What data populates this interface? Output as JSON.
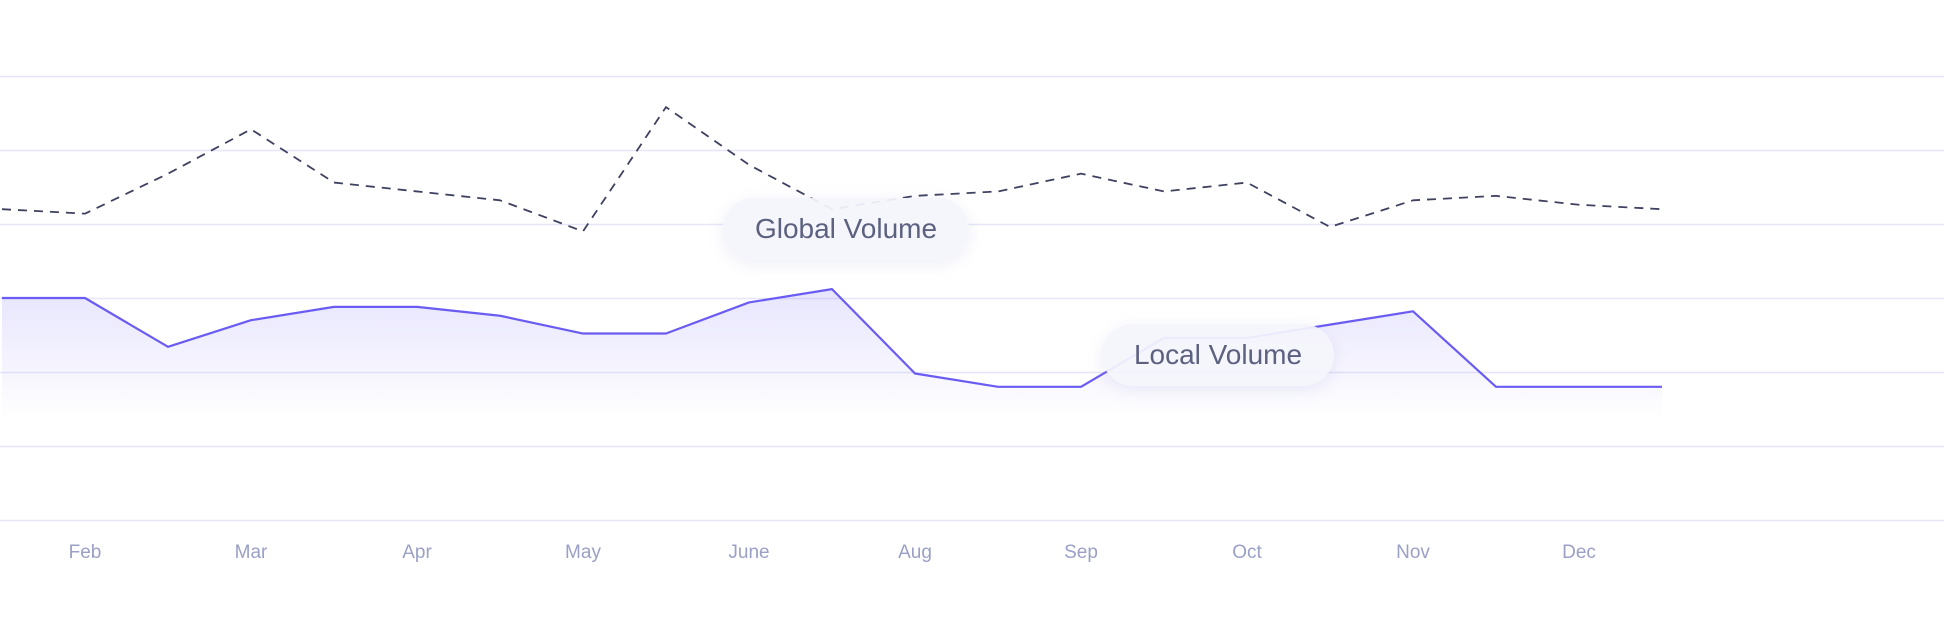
{
  "chart_data": {
    "type": "line",
    "x": [
      "",
      "Feb",
      "",
      "Mar",
      "",
      "Apr",
      "",
      "May",
      "",
      "June",
      "",
      "Aug",
      "",
      "Sep",
      "",
      "Oct",
      "",
      "Nov",
      "",
      "Dec",
      ""
    ],
    "x_tick_labels": [
      "Feb",
      "Mar",
      "Apr",
      "May",
      "June",
      "Aug",
      "Sep",
      "Oct",
      "Nov",
      "Dec"
    ],
    "series": [
      {
        "name": "Global Volume",
        "style": "dashed",
        "color": "#3e4160",
        "values": [
          70,
          69,
          78,
          88,
          76,
          74,
          72,
          65,
          93,
          80,
          70,
          73,
          74,
          78,
          74,
          76,
          66,
          72,
          73,
          71,
          70
        ]
      },
      {
        "name": "Local Volume",
        "style": "solid-area",
        "color": "#6a5cf2",
        "values": [
          50,
          50,
          39,
          45,
          48,
          48,
          46,
          42,
          42,
          49,
          52,
          33,
          30,
          30,
          41,
          41,
          44,
          47,
          30,
          30,
          30
        ]
      }
    ],
    "ylim": [
      0,
      100
    ],
    "grid": true,
    "legend": "inline-callouts",
    "xlabel": "",
    "ylabel": "",
    "title": ""
  },
  "callouts": {
    "global": "Global Volume",
    "local": "Local Volume"
  },
  "colors": {
    "grid": "#e6e6f8",
    "axis_text": "#9aa0c6",
    "local_line": "#6a5cf2",
    "global_line": "#3e4160"
  }
}
